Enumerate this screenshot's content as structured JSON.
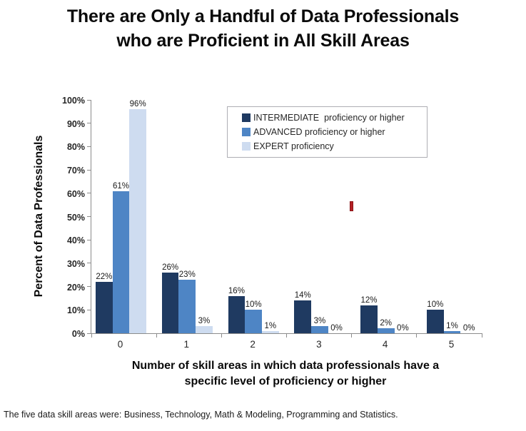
{
  "title": {
    "line1": "There are Only a Handful of Data Professionals",
    "line2": "who are Proficient in All Skill Areas"
  },
  "axis": {
    "x_title_line1": "Number of skill areas in which data professionals have a",
    "x_title_line2": "specific level of proficiency or higher",
    "y_title": "Percent of Data Professionals"
  },
  "footer": "The five data skill areas were: Business, Technology, Math & Modeling, Programming and Statistics.",
  "artifact": {
    "name": "red-marker-artifact",
    "color": "#b52025"
  },
  "chart_data": {
    "type": "bar",
    "title": "There are Only a Handful of Data Professionals who are Proficient in All Skill Areas",
    "xlabel": "Number of skill areas in which data professionals have a specific level of proficiency or higher",
    "ylabel": "Percent of Data Professionals",
    "categories": [
      "0",
      "1",
      "2",
      "3",
      "4",
      "5"
    ],
    "series": [
      {
        "name": "INTERMEDIATE  proficiency or higher",
        "color": "#1f3a61",
        "values": [
          22,
          26,
          16,
          14,
          12,
          10
        ],
        "labels": [
          "22%",
          "26%",
          "16%",
          "14%",
          "12%",
          "10%"
        ]
      },
      {
        "name": "ADVANCED proficiency or higher",
        "color": "#4e85c5",
        "values": [
          61,
          23,
          10,
          3,
          2,
          1
        ],
        "labels": [
          "61%",
          "23%",
          "10%",
          "3%",
          "2%",
          "1%"
        ]
      },
      {
        "name": "EXPERT proficiency",
        "color": "#cedcf0",
        "values": [
          96,
          3,
          1,
          0,
          0,
          0
        ],
        "labels": [
          "96%",
          "3%",
          "1%",
          "0%",
          "0%",
          "0%"
        ]
      }
    ],
    "ylim": [
      0,
      100
    ],
    "y_ticks": [
      "0%",
      "10%",
      "20%",
      "30%",
      "40%",
      "50%",
      "60%",
      "70%",
      "80%",
      "90%",
      "100%"
    ],
    "grid": false,
    "legend_position": "inside-top-center"
  }
}
